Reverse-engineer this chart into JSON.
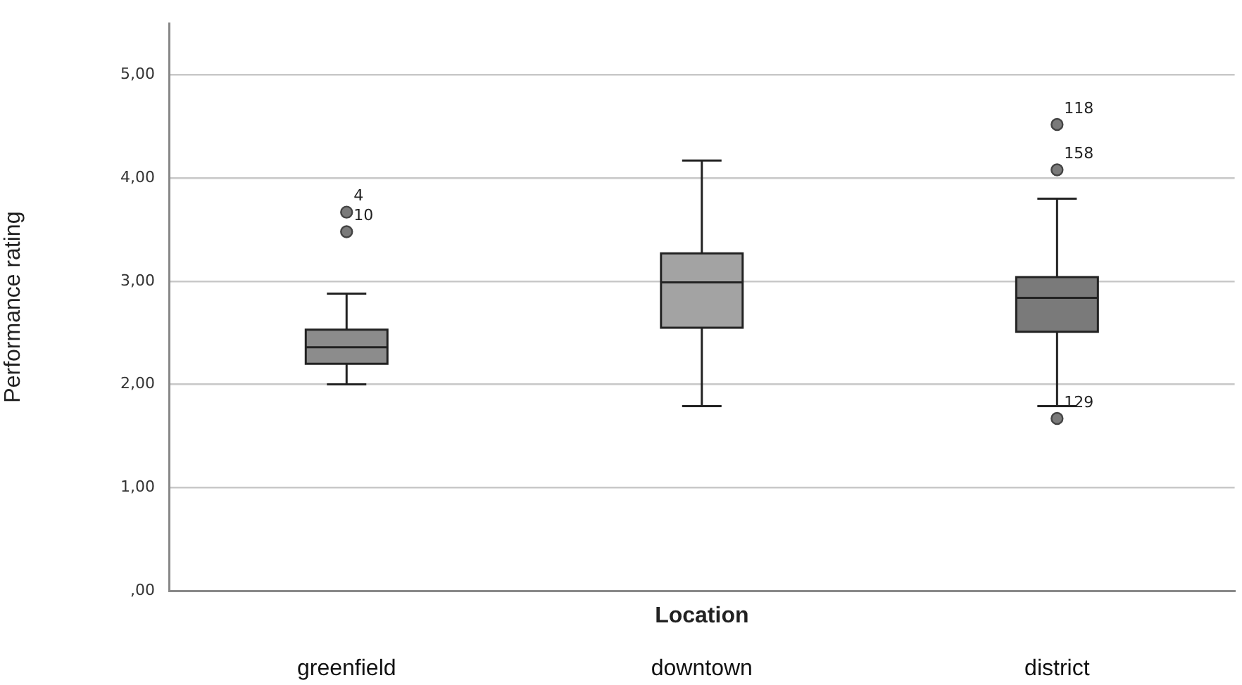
{
  "chart_data": {
    "type": "box",
    "xlabel": "Location",
    "ylabel": "Performance rating",
    "categories": [
      "greenfield",
      "downtown",
      "district"
    ],
    "boxes": [
      {
        "low": 2.0,
        "q1": 2.2,
        "median": 2.36,
        "q3": 2.53,
        "high": 2.88
      },
      {
        "low": 1.79,
        "q1": 2.55,
        "median": 2.99,
        "q3": 3.27,
        "high": 4.17
      },
      {
        "low": 1.79,
        "q1": 2.51,
        "median": 2.84,
        "q3": 3.04,
        "high": 3.8
      }
    ],
    "colors": [
      "#8c8c8c",
      "#a3a3a3",
      "#7a7a7a"
    ],
    "series": [
      {
        "type": "scatter",
        "color": "#7a7a7a",
        "x": [
          "greenfield",
          "greenfield",
          "district",
          "district",
          "district"
        ],
        "values": [
          3.48,
          3.67,
          1.67,
          4.08,
          4.52
        ]
      }
    ],
    "marker": "circle",
    "ylim": [
      0,
      5.5
    ],
    "yticks": [
      {
        "value": 0,
        "label": ",00"
      },
      {
        "value": 1,
        "label": "1,00"
      },
      {
        "value": 2,
        "label": "2,00"
      },
      {
        "value": 3,
        "label": "3,00"
      },
      {
        "value": 4,
        "label": "4,00"
      },
      {
        "value": 5,
        "label": "5,00"
      }
    ],
    "grid": "y",
    "annotations": [
      {
        "text": "4",
        "x": "greenfield",
        "y": 3.67
      },
      {
        "text": "10",
        "x": "greenfield",
        "y": 3.48
      },
      {
        "text": "118",
        "x": "district",
        "y": 4.52
      },
      {
        "text": "158",
        "x": "district",
        "y": 4.08
      },
      {
        "text": "129",
        "x": "district",
        "y": 1.67
      }
    ]
  }
}
